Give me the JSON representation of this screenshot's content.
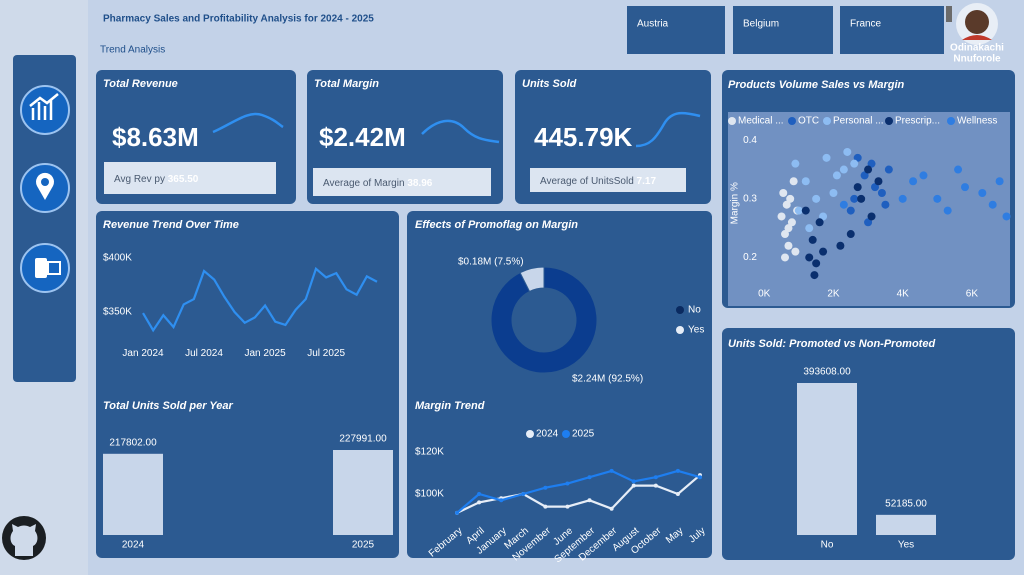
{
  "header": {
    "title": "Pharmacy Sales and Profitability Analysis for 2024 - 2025",
    "subtitle": "Trend Analysis"
  },
  "slicers": [
    "Austria",
    "Belgium",
    "France"
  ],
  "user_name": [
    "Odinakachi",
    "Nnuforole"
  ],
  "kpis": [
    {
      "title": "Total Revenue",
      "value": "$8.63M",
      "sub_label": "Avg Rev py",
      "sub_value": "365.50"
    },
    {
      "title": "Total Margin",
      "value": "$2.42M",
      "sub_label": "Average of Margin",
      "sub_value": "38.96"
    },
    {
      "title": "Units Sold",
      "value": "445.79K",
      "sub_label": "Average of UnitsSold",
      "sub_value": "7.17"
    }
  ],
  "chart_data": [
    {
      "type": "line",
      "title": "Revenue Trend Over Time",
      "categories": [
        "Jan 2024",
        null,
        null,
        null,
        null,
        null,
        "Jul 2024",
        null,
        null,
        null,
        null,
        null,
        "Jan 2025",
        null,
        null,
        null,
        null,
        null,
        "Jul 2025",
        null,
        null,
        null,
        null,
        null
      ],
      "values": [
        349000,
        333000,
        347000,
        336000,
        357000,
        362000,
        388000,
        380000,
        364000,
        350000,
        340000,
        345000,
        356000,
        341000,
        338000,
        352000,
        362000,
        390000,
        382000,
        386000,
        371000,
        366000,
        383000,
        378000
      ],
      "color": "#2f8ff0",
      "ylim": [
        330000,
        410000
      ],
      "yticks": [
        {
          "value": 400000,
          "label": "$400K"
        },
        {
          "value": 350000,
          "label": "$350K"
        }
      ]
    },
    {
      "type": "donut",
      "title": "Effects of Promoflag on Margin",
      "categories": [
        "No",
        "Yes"
      ],
      "values": [
        2240000,
        180000
      ],
      "value_labels": [
        "$2.24M (92.5%)",
        "$0.18M (7.5%)"
      ],
      "colors": [
        "#0b3d8f",
        "#c8d6ea"
      ]
    },
    {
      "type": "bar",
      "title": "Total Units Sold per Year",
      "categories": [
        "2024",
        "2025"
      ],
      "values": [
        217802,
        227991
      ],
      "value_labels": [
        "217802.00",
        "227991.00"
      ],
      "color": "#c8d6ea"
    },
    {
      "type": "line",
      "title": "Margin Trend",
      "categories": [
        "February",
        "April",
        "January",
        "March",
        "November",
        "June",
        "September",
        "December",
        "August",
        "October",
        "May",
        "July"
      ],
      "series": [
        {
          "name": "2024",
          "color": "#e6edf7",
          "values": [
            91000,
            96000,
            98000,
            100000,
            94000,
            94000,
            97000,
            93000,
            104000,
            104000,
            100000,
            109000
          ]
        },
        {
          "name": "2025",
          "color": "#1e7ef0",
          "values": [
            91000,
            100000,
            97000,
            100000,
            103000,
            105000,
            108000,
            111000,
            106000,
            108000,
            111000,
            108000
          ]
        }
      ],
      "ylim": [
        85000,
        125000
      ],
      "yticks": [
        {
          "value": 120000,
          "label": "$120K"
        },
        {
          "value": 100000,
          "label": "$100K"
        }
      ]
    },
    {
      "type": "scatter",
      "title": "Products Volume Sales vs Margin",
      "y_label": "Margin %",
      "series": [
        {
          "name": "Medical ...",
          "color": "#dfe6f0",
          "x": [
            500,
            600,
            700,
            650,
            800,
            900,
            550,
            750,
            950,
            600,
            850,
            700
          ],
          "y": [
            0.27,
            0.24,
            0.22,
            0.29,
            0.26,
            0.21,
            0.31,
            0.3,
            0.28,
            0.2,
            0.33,
            0.25
          ]
        },
        {
          "name": "OTC",
          "color": "#1f5fbf",
          "x": [
            2600,
            2900,
            3200,
            3500,
            2700,
            3100,
            3400,
            2500,
            3600,
            3000
          ],
          "y": [
            0.3,
            0.34,
            0.32,
            0.29,
            0.37,
            0.36,
            0.31,
            0.28,
            0.35,
            0.26
          ]
        },
        {
          "name": "Personal ...",
          "color": "#8dbcf2",
          "x": [
            900,
            1200,
            1500,
            1800,
            2100,
            2400,
            1000,
            1300,
            2000,
            2600,
            1700,
            2300
          ],
          "y": [
            0.36,
            0.33,
            0.3,
            0.37,
            0.34,
            0.38,
            0.28,
            0.25,
            0.31,
            0.36,
            0.27,
            0.35
          ]
        },
        {
          "name": "Prescrip...",
          "color": "#0a2f6e",
          "x": [
            1300,
            1400,
            1500,
            1600,
            1200,
            1450,
            2200,
            2800,
            3100,
            3300,
            2500,
            1700,
            3000,
            2700
          ],
          "y": [
            0.2,
            0.23,
            0.19,
            0.26,
            0.28,
            0.17,
            0.22,
            0.3,
            0.27,
            0.33,
            0.24,
            0.21,
            0.35,
            0.32
          ]
        },
        {
          "name": "Wellness",
          "color": "#2f7de1",
          "x": [
            2300,
            4300,
            4600,
            5000,
            5300,
            5800,
            6300,
            6600,
            7000,
            4000,
            5600,
            6800
          ],
          "y": [
            0.29,
            0.33,
            0.34,
            0.3,
            0.28,
            0.32,
            0.31,
            0.29,
            0.27,
            0.3,
            0.35,
            0.33
          ]
        }
      ],
      "xlim": [
        -700,
        7100
      ],
      "ylim": [
        0.165,
        0.42
      ],
      "xticks": [
        {
          "value": 0,
          "label": "0K"
        },
        {
          "value": 2000,
          "label": "2K"
        },
        {
          "value": 4000,
          "label": "4K"
        },
        {
          "value": 6000,
          "label": "6K"
        }
      ],
      "yticks": [
        0.4,
        0.3,
        0.2
      ]
    },
    {
      "type": "bar",
      "title": "Units Sold: Promoted vs Non-Promoted",
      "categories": [
        "No",
        "Yes"
      ],
      "values": [
        393608,
        52185
      ],
      "value_labels": [
        "393608.00",
        "52185.00"
      ],
      "color": "#c8d6ea"
    }
  ]
}
